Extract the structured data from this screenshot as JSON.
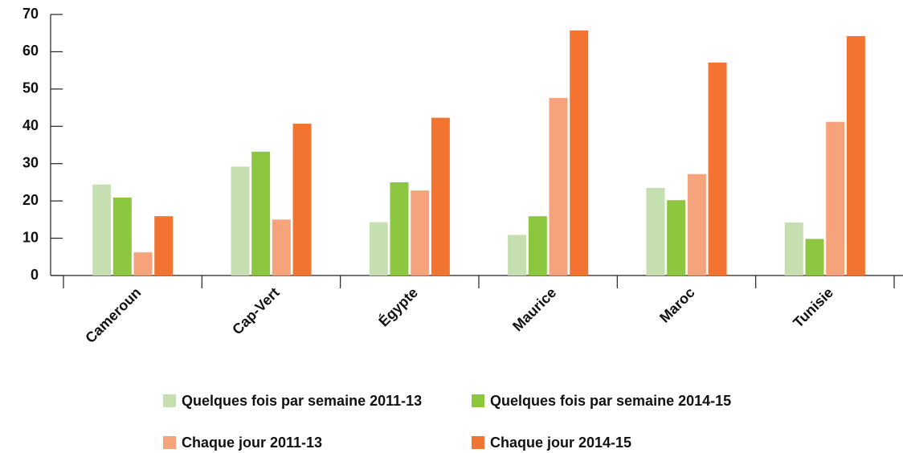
{
  "chart_data": {
    "type": "bar",
    "categories": [
      "Cameroun",
      "Cap-Vert",
      "Égypte",
      "Maurice",
      "Maroc",
      "Tunisie"
    ],
    "series": [
      {
        "name": "Quelques fois par semaine 2011-13",
        "color": "#c5dfb0",
        "values": [
          24.4,
          29.2,
          14.3,
          10.9,
          23.5,
          14.2
        ]
      },
      {
        "name": "Quelques fois par semaine 2014-15",
        "color": "#8dc63f",
        "values": [
          20.9,
          33.2,
          25,
          15.9,
          20.2,
          9.8
        ]
      },
      {
        "name": "Chaque jour 2011-13",
        "color": "#f5a37a",
        "values": [
          6.2,
          15,
          22.8,
          47.6,
          27.2,
          41.2
        ]
      },
      {
        "name": "Chaque jour 2014-15",
        "color": "#f37430",
        "values": [
          15.9,
          40.7,
          42.3,
          65.7,
          57.1,
          64.2
        ]
      }
    ],
    "ylim": [
      0,
      70
    ],
    "yticks": [
      0,
      10,
      20,
      30,
      40,
      50,
      60,
      70
    ],
    "legend": "bottom"
  }
}
